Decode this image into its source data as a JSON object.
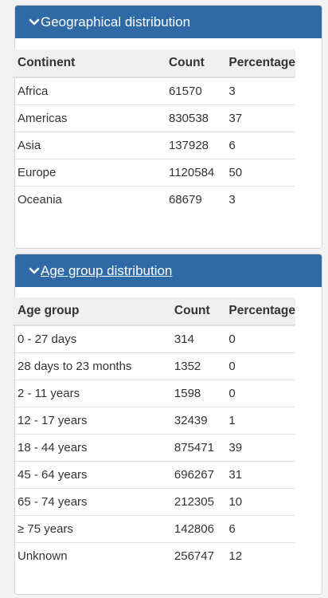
{
  "geo": {
    "title": "Geographical distribution",
    "columns": [
      "Continent",
      "Count",
      "Percentage"
    ],
    "rows": [
      [
        "Africa",
        "61570",
        "3"
      ],
      [
        "Americas",
        "830538",
        "37"
      ],
      [
        "Asia",
        "137928",
        "6"
      ],
      [
        "Europe",
        "1120584",
        "50"
      ],
      [
        "Oceania",
        "68679",
        "3"
      ]
    ]
  },
  "age": {
    "title": "Age group distribution",
    "columns": [
      "Age group",
      "Count",
      "Percentage"
    ],
    "rows": [
      [
        "0 - 27 days",
        "314",
        "0"
      ],
      [
        "28 days to 23 months",
        "1352",
        "0"
      ],
      [
        "2 - 11 years",
        "1598",
        "0"
      ],
      [
        "12 - 17 years",
        "32439",
        "1"
      ],
      [
        "18 - 44 years",
        "875471",
        "39"
      ],
      [
        "45 - 64 years",
        "696267",
        "31"
      ],
      [
        "65 - 74 years",
        "212305",
        "10"
      ],
      [
        "≥ 75 years",
        "142806",
        "6"
      ],
      [
        "Unknown",
        "256747",
        "12"
      ]
    ]
  },
  "colors": {
    "header_bg": "#2f6aa6",
    "header_text": "#ffffff"
  },
  "icons": {
    "panel_toggle": "chevron-down-icon"
  }
}
